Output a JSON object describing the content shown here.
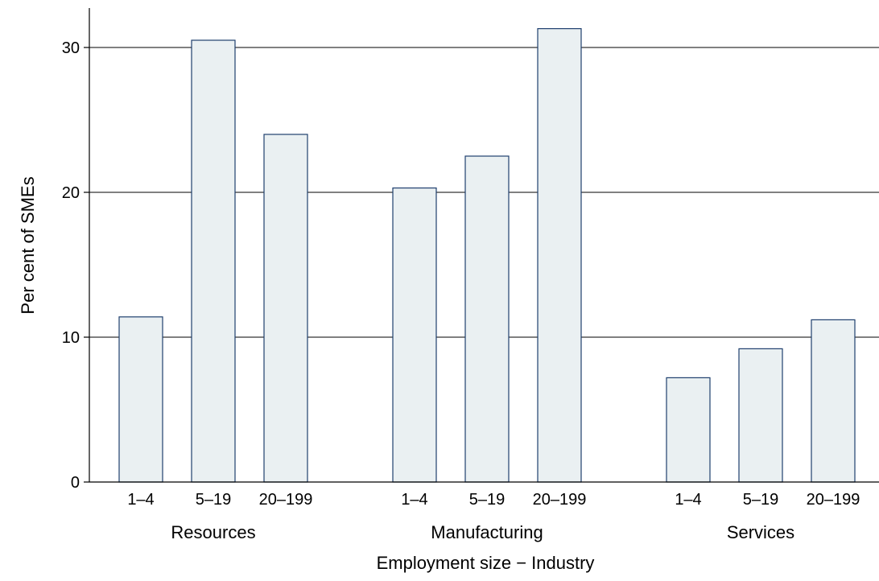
{
  "chart_data": {
    "type": "bar",
    "title": "",
    "xlabel": "Employment size − Industry",
    "ylabel": "Per cent of SMEs",
    "ylim": [
      0,
      30
    ],
    "yticks": [
      0,
      10,
      20,
      30
    ],
    "ytick_labels": [
      "0",
      "10",
      "20",
      "30"
    ],
    "grid": true,
    "bar_fill": "#eaf0f2",
    "bar_stroke": "#1f3f6e",
    "groups": [
      {
        "label": "Resources",
        "categories": [
          "1–4",
          "5–19",
          "20–199"
        ],
        "values": [
          11.4,
          30.5,
          24.0
        ]
      },
      {
        "label": "Manufacturing",
        "categories": [
          "1–4",
          "5–19",
          "20–199"
        ],
        "values": [
          20.3,
          22.5,
          31.3
        ]
      },
      {
        "label": "Services",
        "categories": [
          "1–4",
          "5–19",
          "20–199"
        ],
        "values": [
          7.2,
          9.2,
          11.2
        ]
      }
    ]
  }
}
